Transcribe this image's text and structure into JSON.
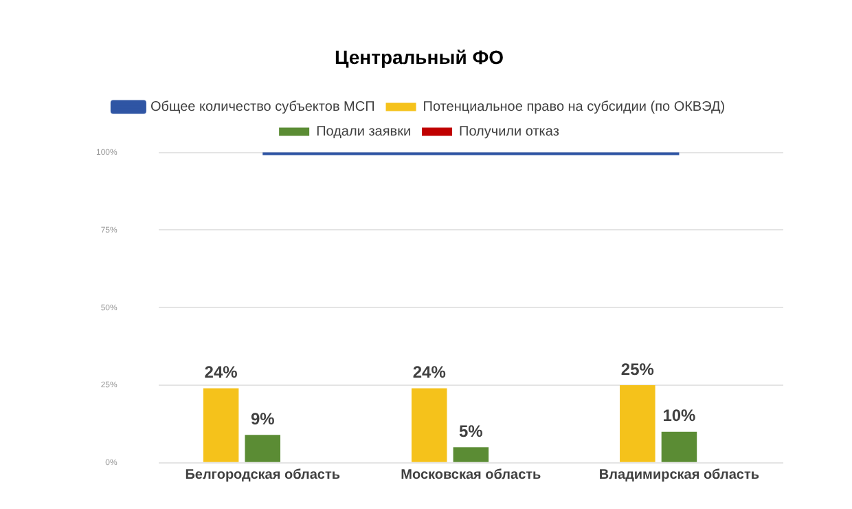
{
  "chart_data": {
    "type": "bar",
    "title": "Центральный ФО",
    "categories": [
      "Белгородская область",
      "Московская область",
      "Владимирская область"
    ],
    "series": [
      {
        "name": "Потенциальное право на субсидии (по ОКВЭД)",
        "color": "#f5c21b",
        "values": [
          24,
          24,
          25
        ],
        "value_labels": [
          "24%",
          "24%",
          "25%"
        ]
      },
      {
        "name": "Подали заявки",
        "color": "#5b8c34",
        "values": [
          9,
          5,
          10
        ],
        "value_labels": [
          "9%",
          "5%",
          "10%"
        ]
      },
      {
        "name": "Получили отказ",
        "color": "#c00000",
        "values": [
          null,
          null,
          null
        ]
      },
      {
        "name": "Общее количество субъектов МСП",
        "type": "line",
        "color": "#2f55a4",
        "values": [
          100,
          100,
          100
        ],
        "marker": "none"
      }
    ],
    "ylim": [
      0,
      100
    ],
    "yticks": [
      {
        "value": 0,
        "label": "0%"
      },
      {
        "value": 25,
        "label": "25%"
      },
      {
        "value": 50,
        "label": "50%"
      },
      {
        "value": 75,
        "label": "75%"
      },
      {
        "value": 100,
        "label": "100%"
      }
    ],
    "grid": "y",
    "legend": "top"
  }
}
